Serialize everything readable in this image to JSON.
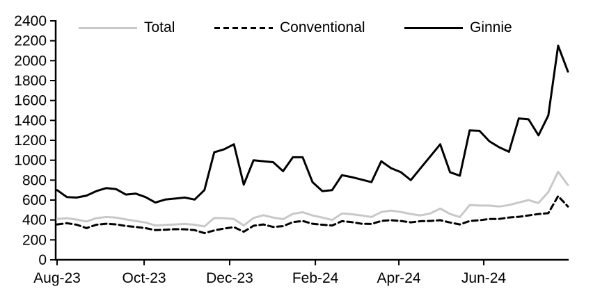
{
  "chart_data": {
    "type": "line",
    "title": "",
    "xlabel": "",
    "ylabel": "",
    "x_description": "weekly observations from Aug-23 through Aug-24 (53 points)",
    "ylim": [
      0,
      2400
    ],
    "y_tick_step": 200,
    "y_tick_labels": [
      "0",
      "200",
      "400",
      "600",
      "800",
      "1000",
      "1200",
      "1400",
      "1600",
      "1800",
      "2000",
      "2200",
      "2400"
    ],
    "x_ticks": [
      {
        "label": "Aug-23",
        "pos": 0
      },
      {
        "label": "Oct-23",
        "pos": 8.86
      },
      {
        "label": "Dec-23",
        "pos": 17.57
      },
      {
        "label": "Feb-24",
        "pos": 26.29
      },
      {
        "label": "Apr-24",
        "pos": 34.79
      },
      {
        "label": "Jun-24",
        "pos": 43.43
      }
    ],
    "grid": false,
    "legend_position": "top",
    "background_color": "#ffffff",
    "axis_color": "#000000",
    "series": [
      {
        "name": "Total",
        "color": "#c8c8c8",
        "style": "solid",
        "values": [
          410,
          418,
          404,
          385,
          418,
          430,
          424,
          405,
          390,
          375,
          345,
          350,
          355,
          360,
          352,
          335,
          420,
          418,
          410,
          345,
          420,
          448,
          424,
          408,
          462,
          478,
          445,
          424,
          400,
          465,
          458,
          445,
          430,
          480,
          494,
          480,
          460,
          446,
          466,
          515,
          460,
          430,
          550,
          545,
          545,
          535,
          550,
          575,
          600,
          570,
          680,
          885,
          750
        ]
      },
      {
        "name": "Conventional",
        "color": "#000000",
        "style": "dashed",
        "values": [
          355,
          368,
          352,
          318,
          352,
          362,
          356,
          340,
          330,
          318,
          298,
          302,
          308,
          306,
          298,
          268,
          295,
          314,
          328,
          282,
          342,
          355,
          330,
          338,
          378,
          390,
          362,
          352,
          345,
          388,
          378,
          362,
          360,
          390,
          398,
          390,
          376,
          388,
          390,
          398,
          375,
          355,
          390,
          397,
          410,
          410,
          425,
          432,
          446,
          460,
          468,
          640,
          535
        ]
      },
      {
        "name": "Ginnie",
        "color": "#000000",
        "style": "solid",
        "values": [
          700,
          630,
          625,
          645,
          690,
          720,
          710,
          655,
          665,
          630,
          575,
          605,
          615,
          625,
          605,
          700,
          1080,
          1110,
          1160,
          755,
          1000,
          990,
          980,
          890,
          1030,
          1030,
          780,
          690,
          700,
          850,
          830,
          805,
          780,
          990,
          920,
          880,
          800,
          920,
          1040,
          1160,
          880,
          845,
          1300,
          1295,
          1190,
          1130,
          1085,
          1420,
          1410,
          1250,
          1450,
          2150,
          1890
        ]
      }
    ]
  }
}
